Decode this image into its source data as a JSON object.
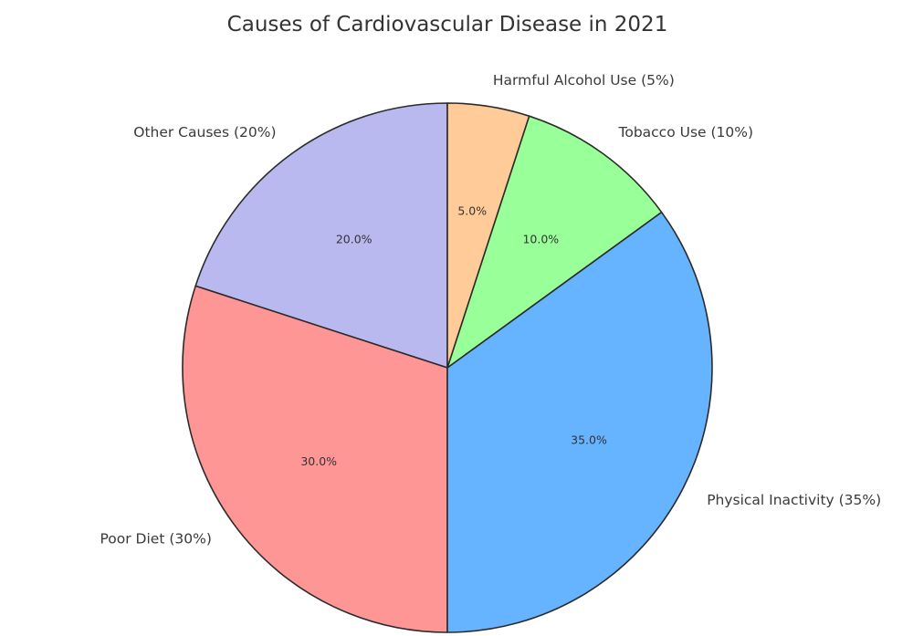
{
  "chart_data": {
    "type": "pie",
    "title": "Causes of Cardiovascular Disease in 2021",
    "start_angle_deg": 90,
    "direction": "counterclockwise",
    "slices": [
      {
        "label": "Other Causes (20%)",
        "value": 20,
        "pct_label": "20.0%",
        "color": "#b9b9f0"
      },
      {
        "label": "Poor Diet (30%)",
        "value": 30,
        "pct_label": "30.0%",
        "color": "#ff9696"
      },
      {
        "label": "Physical Inactivity (35%)",
        "value": 35,
        "pct_label": "35.0%",
        "color": "#66b3ff"
      },
      {
        "label": "Tobacco Use (10%)",
        "value": 10,
        "pct_label": "10.0%",
        "color": "#99ff99"
      },
      {
        "label": "Harmful Alcohol Use (5%)",
        "value": 5,
        "pct_label": "5.0%",
        "color": "#ffcc99"
      }
    ]
  }
}
